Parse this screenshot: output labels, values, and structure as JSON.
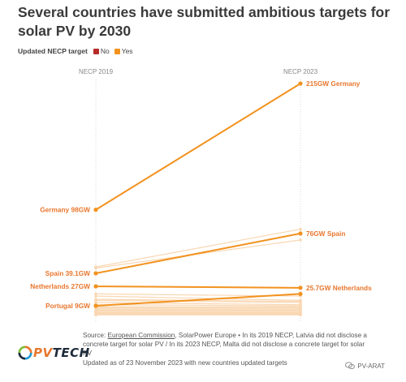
{
  "title": "Several countries have submitted ambitious targets for solar PV by 2030",
  "legend": {
    "title": "Updated NECP target",
    "items": [
      {
        "label": "No",
        "color": "#b52b27"
      },
      {
        "label": "Yes",
        "color": "#f2921f"
      }
    ]
  },
  "source": {
    "prefix": "Source: ",
    "link": "European Commission",
    "text": ", SolarPower Europe • In its 2019 NECP, Latvia did not disclose a concrete target for solar PV / In its 2023 NECP, Malta did not disclose a concrete target for solar PV",
    "updated": "Updated as of 23 November 2023 with new countries updated targets"
  },
  "logo": {
    "pv": "PV",
    "tech": "TECH"
  },
  "watermark": "PV-ARAT",
  "colors": {
    "highlight": "#f2921f",
    "faded": "#f9d7b2",
    "gridline": "#cccccc",
    "text": "#e8772e"
  },
  "chart_data": {
    "type": "line",
    "x": [
      "NECP 2019",
      "NECP 2023"
    ],
    "ylim": [
      0,
      215
    ],
    "grid": false,
    "highlighted": [
      {
        "name": "Germany",
        "values": [
          98,
          215
        ],
        "label_start": "Germany 98GW",
        "label_end": "215GW Germany"
      },
      {
        "name": "Spain",
        "values": [
          39.1,
          76
        ],
        "label_start": "Spain 39.1GW",
        "label_end": "76GW Spain"
      },
      {
        "name": "Netherlands",
        "values": [
          27,
          25.7
        ],
        "label_start": "Netherlands 27GW",
        "label_end": "25.7GW Netherlands"
      },
      {
        "name": "Portugal",
        "values": [
          9,
          20
        ],
        "label_start": "Portugal 9GW",
        "label_end": ""
      }
    ],
    "background_series": [
      {
        "values": [
          45,
          80
        ]
      },
      {
        "values": [
          44,
          70
        ]
      },
      {
        "values": [
          20,
          18
        ]
      },
      {
        "values": [
          18,
          14
        ]
      },
      {
        "values": [
          15,
          13
        ]
      },
      {
        "values": [
          14,
          12
        ]
      },
      {
        "values": [
          12,
          10
        ]
      },
      {
        "values": [
          10,
          9
        ]
      },
      {
        "values": [
          8,
          8
        ]
      },
      {
        "values": [
          7,
          7
        ]
      },
      {
        "values": [
          6,
          6
        ]
      },
      {
        "values": [
          5,
          5
        ]
      },
      {
        "values": [
          4,
          4
        ]
      },
      {
        "values": [
          3,
          3
        ]
      },
      {
        "values": [
          2.5,
          2.5
        ]
      },
      {
        "values": [
          2,
          2
        ]
      },
      {
        "values": [
          1.5,
          1.5
        ]
      },
      {
        "values": [
          1,
          1
        ]
      },
      {
        "values": [
          0.5,
          0.5
        ]
      }
    ]
  }
}
